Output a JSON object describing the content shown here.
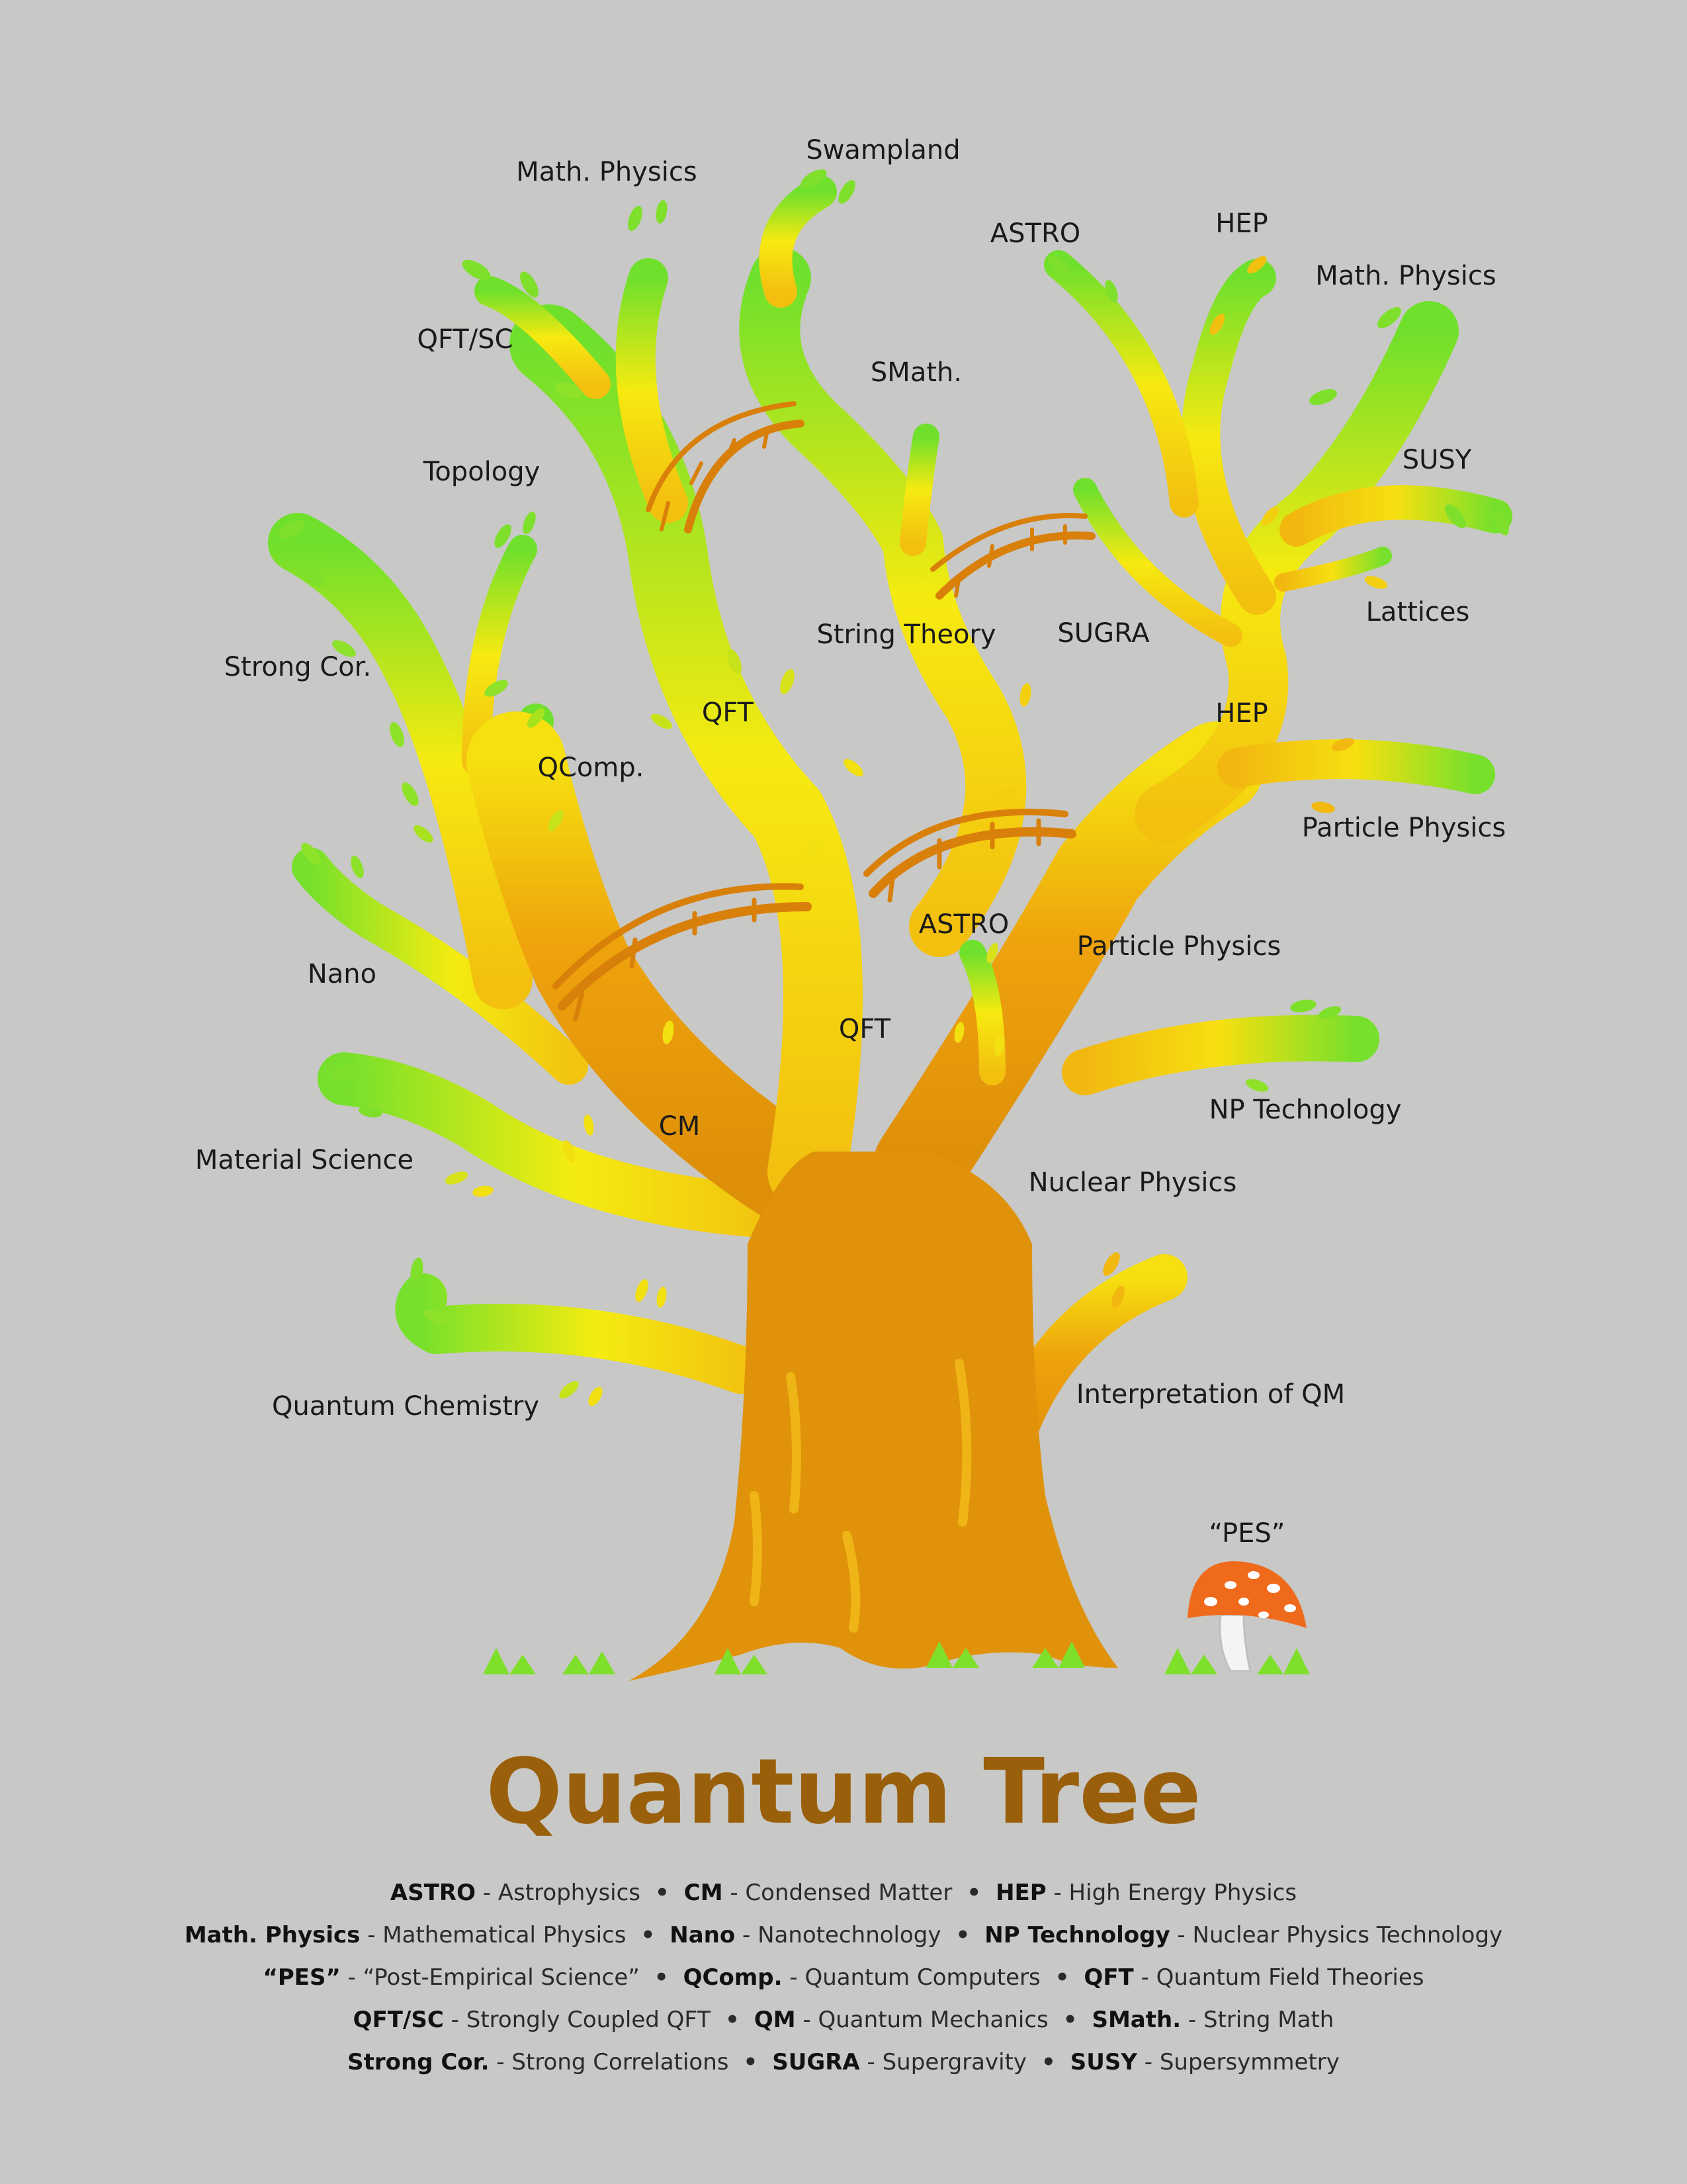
{
  "labels": {
    "math_physics_left": "Math. Physics",
    "swampland": "Swampland",
    "astro_top": "ASTRO",
    "hep_top": "HEP",
    "math_physics_right": "Math. Physics",
    "qft_sc": "QFT/SC",
    "smath": "SMath.",
    "susy": "SUSY",
    "topology": "Topology",
    "lattices": "Lattices",
    "string_theory": "String Theory",
    "sugra": "SUGRA",
    "strong_cor": "Strong Cor.",
    "qft_upper": "QFT",
    "hep_mid": "HEP",
    "qcomp": "QComp.",
    "particle_physics_right": "Particle Physics",
    "astro_mid": "ASTRO",
    "particle_physics_mid": "Particle Physics",
    "nano": "Nano",
    "qft_lower": "QFT",
    "np_technology": "NP Technology",
    "cm": "CM",
    "material_science": "Material Science",
    "nuclear_physics": "Nuclear Physics",
    "interpretation_qm": "Interpretation of QM",
    "quantum_chemistry": "Quantum Chemistry",
    "pes": "“PES”"
  },
  "title": "Quantum Tree",
  "legend": [
    [
      {
        "abbr": "ASTRO",
        "text": " - Astrophysics"
      },
      {
        "abbr": "CM",
        "text": " - Condensed Matter"
      },
      {
        "abbr": "HEP",
        "text": " - High Energy Physics"
      }
    ],
    [
      {
        "abbr": "Math. Physics",
        "text": " - Mathematical Physics"
      },
      {
        "abbr": "Nano",
        "text": " - Nanotechnology"
      },
      {
        "abbr": "NP Technology",
        "text": " - Nuclear Physics Technology"
      }
    ],
    [
      {
        "abbr": "“PES”",
        "text": " - “Post-Empirical Science”"
      },
      {
        "abbr": "QComp.",
        "text": " - Quantum Computers"
      },
      {
        "abbr": "QFT",
        "text": " - Quantum Field Theories"
      }
    ],
    [
      {
        "abbr": "QFT/SC",
        "text": " - Strongly Coupled QFT"
      },
      {
        "abbr": "QM",
        "text": " - Quantum Mechanics"
      },
      {
        "abbr": "SMath.",
        "text": " - String Math"
      }
    ],
    [
      {
        "abbr": "Strong Cor.",
        "text": " - Strong Correlations"
      },
      {
        "abbr": "SUGRA",
        "text": " - Supergravity"
      },
      {
        "abbr": "SUSY",
        "text": " - Supersymmetry"
      }
    ]
  ],
  "colors": {
    "background": "#c8c8c6",
    "trunk": "#e0920a",
    "mid": "#f6e20c",
    "leaf": "#7be02a",
    "bridge": "#d9800a",
    "title": "#9a5f0a",
    "mushroom_cap": "#f06a1c"
  }
}
